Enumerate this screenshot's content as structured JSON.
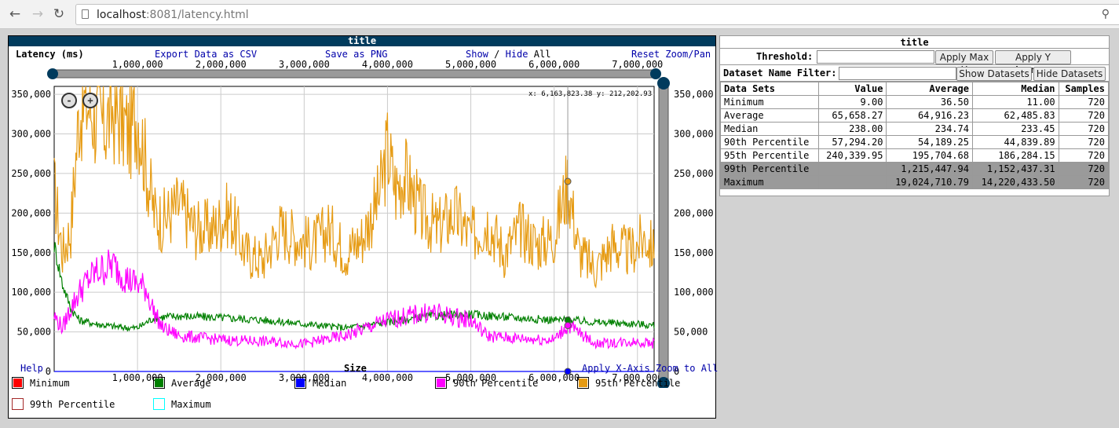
{
  "browser": {
    "url_host": "localhost",
    "url_path": ":8081/latency.html",
    "back_icon": "back-arrow-icon",
    "forward_icon": "forward-arrow-icon",
    "reload_icon": "reload-icon"
  },
  "chart_panel": {
    "title": "title",
    "y_axis_label": "Latency (ms)",
    "export_csv": "Export Data as CSV",
    "save_png": "Save as PNG",
    "show_label": "Show",
    "slash": "/",
    "hide_label": "Hide",
    "all_label": "All",
    "reset_zoom": "Reset Zoom/Pan",
    "help": "Help",
    "apply_x_zoom": "Apply X-Axis Zoom to All",
    "readout": "x: 6,163,823.38 y: 212,202.93",
    "zoom_out": "-",
    "zoom_in": "+",
    "legend": [
      {
        "name": "Minimum",
        "color": "#ff0000",
        "filled": true
      },
      {
        "name": "Average",
        "color": "#008000",
        "filled": true
      },
      {
        "name": "Median",
        "color": "#0000ff",
        "filled": true
      },
      {
        "name": "90th Percentile",
        "color": "#ff00ff",
        "filled": true
      },
      {
        "name": "95th Percentile",
        "color": "#e69b13",
        "filled": true
      },
      {
        "name": "99th Percentile",
        "color": "#a52a2a",
        "filled": false
      },
      {
        "name": "Maximum",
        "color": "#00ffff",
        "filled": false
      }
    ]
  },
  "chart_data": {
    "type": "line",
    "xlabel": "Size",
    "ylabel": "Latency (ms)",
    "xlim": [
      0,
      7200000
    ],
    "ylim": [
      0,
      360000
    ],
    "x_ticks": [
      "1,000,000",
      "2,000,000",
      "3,000,000",
      "4,000,000",
      "5,000,000",
      "6,000,000",
      "7,000,000"
    ],
    "x_tick_values": [
      1000000,
      2000000,
      3000000,
      4000000,
      5000000,
      6000000,
      7000000
    ],
    "y_ticks": [
      "0",
      "50,000",
      "100,000",
      "150,000",
      "200,000",
      "250,000",
      "300,000",
      "350,000"
    ],
    "y_tick_values": [
      0,
      50000,
      100000,
      150000,
      200000,
      250000,
      300000,
      350000
    ],
    "grid": true,
    "cursor_x": 6163823.38,
    "series": [
      {
        "name": "95th Percentile",
        "color": "#e69b13",
        "x": [
          0,
          100000,
          200000,
          300000,
          400000,
          500000,
          600000,
          700000,
          800000,
          900000,
          1000000,
          1100000,
          1200000,
          1300000,
          1500000,
          1700000,
          1900000,
          2100000,
          2300000,
          2500000,
          2700000,
          2900000,
          3100000,
          3300000,
          3500000,
          3700000,
          3900000,
          4000000,
          4100000,
          4200000,
          4400000,
          4600000,
          4800000,
          5000000,
          5200000,
          5400000,
          5600000,
          5800000,
          6000000,
          6163823,
          6300000,
          6500000,
          6700000,
          6900000,
          7100000,
          7200000
        ],
        "values": [
          230000,
          150000,
          180000,
          330000,
          340000,
          320000,
          310000,
          330000,
          320000,
          300000,
          330000,
          260000,
          200000,
          190000,
          210000,
          180000,
          180000,
          200000,
          150000,
          140000,
          180000,
          170000,
          160000,
          180000,
          150000,
          170000,
          220000,
          280000,
          230000,
          250000,
          200000,
          180000,
          200000,
          170000,
          190000,
          150000,
          180000,
          160000,
          170000,
          240000,
          150000,
          130000,
          160000,
          150000,
          170000,
          150000
        ]
      },
      {
        "name": "Average",
        "color": "#008000",
        "x": [
          0,
          100000,
          200000,
          300000,
          500000,
          700000,
          900000,
          1000000,
          1200000,
          1500000,
          2000000,
          2500000,
          3000000,
          3500000,
          4000000,
          4500000,
          5000000,
          5500000,
          6000000,
          6163823,
          6500000,
          7000000,
          7200000
        ],
        "values": [
          160000,
          110000,
          80000,
          65000,
          60000,
          57000,
          55000,
          55000,
          68000,
          70000,
          68000,
          65000,
          60000,
          55000,
          62000,
          70000,
          72000,
          68000,
          65000,
          65000,
          62000,
          60000,
          58000
        ]
      },
      {
        "name": "90th Percentile",
        "color": "#ff00ff",
        "x": [
          0,
          100000,
          200000,
          300000,
          400000,
          500000,
          600000,
          700000,
          800000,
          900000,
          1000000,
          1100000,
          1200000,
          1300000,
          1500000,
          2000000,
          2500000,
          3000000,
          3500000,
          4000000,
          4500000,
          5000000,
          5200000,
          5500000,
          6000000,
          6163823,
          6500000,
          7000000,
          7200000
        ],
        "values": [
          70000,
          55000,
          80000,
          100000,
          115000,
          125000,
          130000,
          135000,
          125000,
          115000,
          110000,
          105000,
          75000,
          55000,
          45000,
          40000,
          38000,
          35000,
          45000,
          65000,
          75000,
          65000,
          45000,
          42000,
          40000,
          58000,
          35000,
          38000,
          35000
        ]
      },
      {
        "name": "Median",
        "color": "#0000ff",
        "x": [
          0,
          7200000
        ],
        "values": [
          0,
          0
        ]
      }
    ]
  },
  "stats_panel": {
    "title": "title",
    "threshold_label": "Threshold:",
    "apply_max_y": "Apply Max Y",
    "apply_y_avg": "Apply Y Average",
    "filter_label": "Dataset Name Filter:",
    "show_datasets": "Show Datasets",
    "hide_datasets": "Hide Datasets",
    "headers": [
      "Data Sets",
      "Value",
      "Average",
      "Median",
      "Samples"
    ],
    "rows": [
      {
        "cells": [
          "Minimum",
          "9.00",
          "36.50",
          "11.00",
          "720"
        ],
        "hidden": false
      },
      {
        "cells": [
          "Average",
          "65,658.27",
          "64,916.23",
          "62,485.83",
          "720"
        ],
        "hidden": false
      },
      {
        "cells": [
          "Median",
          "238.00",
          "234.74",
          "233.45",
          "720"
        ],
        "hidden": false
      },
      {
        "cells": [
          "90th Percentile",
          "57,294.20",
          "54,189.25",
          "44,839.89",
          "720"
        ],
        "hidden": false
      },
      {
        "cells": [
          "95th Percentile",
          "240,339.95",
          "195,704.68",
          "186,284.15",
          "720"
        ],
        "hidden": false
      },
      {
        "cells": [
          "99th Percentile",
          "",
          "1,215,447.94",
          "1,152,437.31",
          "720"
        ],
        "hidden": true
      },
      {
        "cells": [
          "Maximum",
          "",
          "19,024,710.79",
          "14,220,433.50",
          "720"
        ],
        "hidden": true
      }
    ]
  }
}
